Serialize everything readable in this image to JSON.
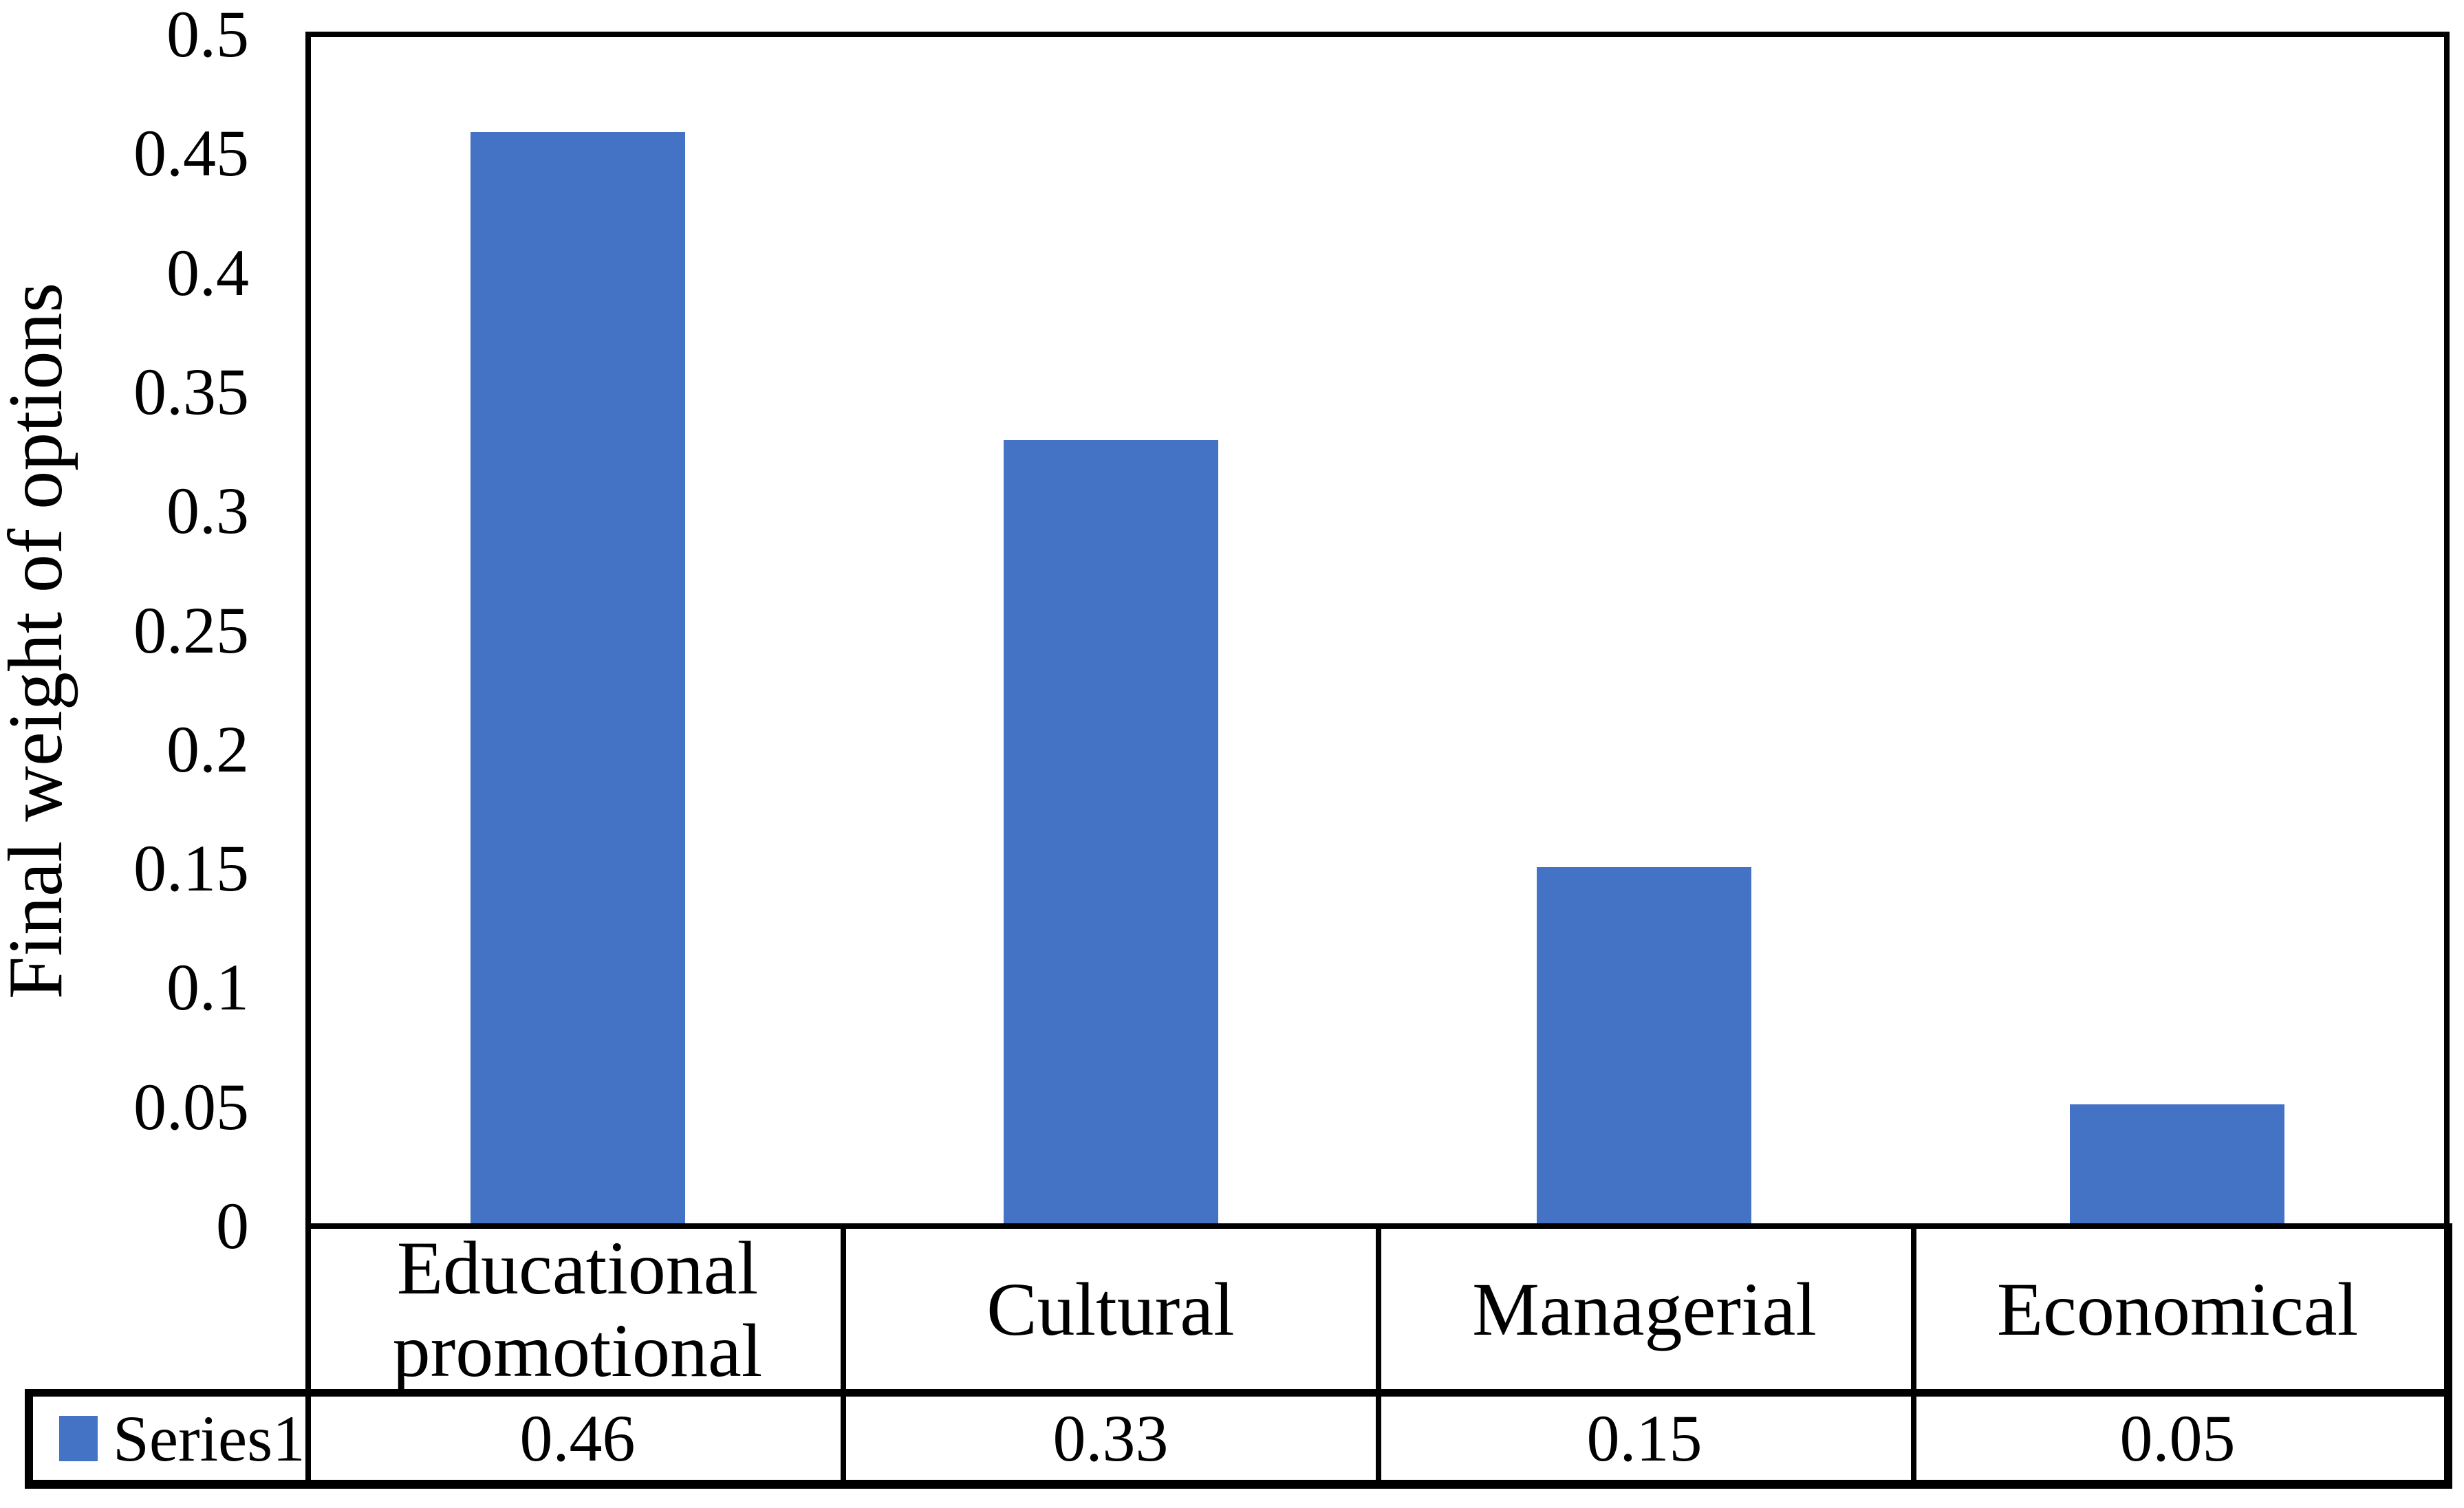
{
  "chart_data": {
    "type": "bar",
    "title": "",
    "categories": [
      "Educational promotional",
      "Cultural",
      "Managerial",
      "Economical"
    ],
    "values": [
      0.46,
      0.33,
      0.15,
      0.05
    ],
    "value_labels": [
      "0.46",
      "0.33",
      "0.15",
      "0.05"
    ],
    "series": [
      {
        "name": "Series1",
        "values": [
          0.46,
          0.33,
          0.15,
          0.05
        ]
      }
    ],
    "legend_label": "Series1",
    "xlabel": "",
    "ylabel": "Final weight of options",
    "ylim": [
      0,
      0.5
    ],
    "ytick_step": 0.05,
    "ytick_labels_top_to_bottom": [
      "0.5",
      "0.45",
      "0.4",
      "0.35",
      "0.3",
      "0.25",
      "0.2",
      "0.15",
      "0.1",
      "0.05",
      "0"
    ],
    "grid": false,
    "legend_position": "bottom-data-table",
    "bar_color": "#4472C4",
    "axis_color": "#000000",
    "text_color": "#000000",
    "background_color": "#ffffff"
  }
}
